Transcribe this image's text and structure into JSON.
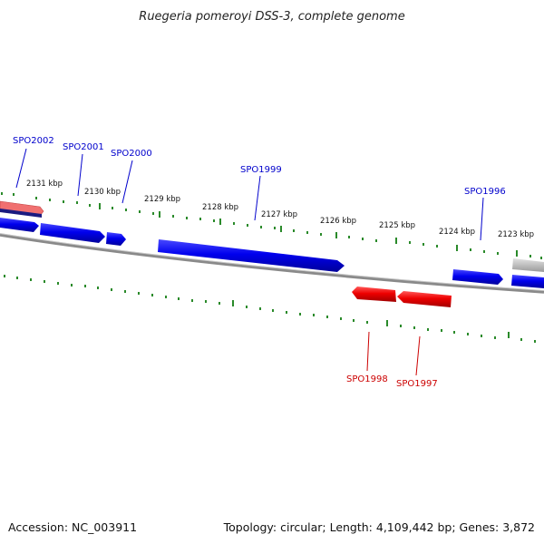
{
  "title": "Ruegeria pomeroyi DSS-3, complete genome",
  "footer": {
    "accession": "Accession: NC_003911",
    "summary": "Topology: circular; Length: 4,109,442 bp; Genes: 3,872"
  },
  "colors": {
    "forward_gene": "#0000ee",
    "reverse_gene": "#ee0000",
    "tick": "#2a8a2a",
    "backbone": "#888888"
  },
  "kbp_labels": [
    "2131 kbp",
    "2130 kbp",
    "2129 kbp",
    "2128 kbp",
    "2127 kbp",
    "2126 kbp",
    "2125 kbp",
    "2124 kbp",
    "2123 kbp"
  ],
  "forward_genes": [
    "SPO2002",
    "SPO2001",
    "SPO2000",
    "SPO1999",
    "SPO1996"
  ],
  "reverse_genes": [
    "SPO1998",
    "SPO1997"
  ]
}
